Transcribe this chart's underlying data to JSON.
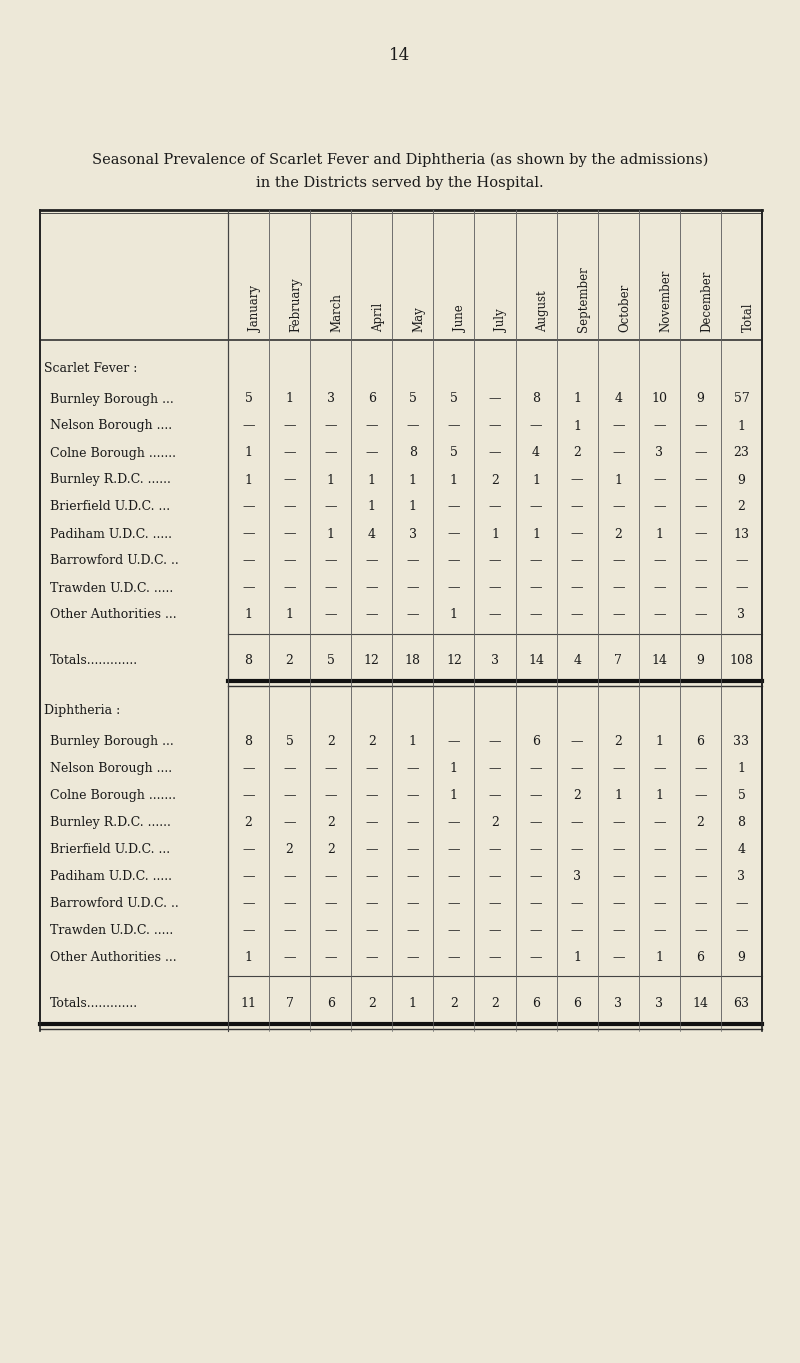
{
  "page_number": "14",
  "title_line1": "Seasonal Prevalence of Scarlet Fever and Diphtheria (as shown by the admissions)",
  "title_line2": "in the Districts served by the Hospital.",
  "bg_color": "#ede8d8",
  "col_headers": [
    "January",
    "February",
    "March",
    "April",
    "May",
    "June",
    "July",
    "August",
    "September",
    "October",
    "November",
    "December",
    "Total"
  ],
  "section1_title": "Scarlet Fever :",
  "section1_rows": [
    {
      "name": "Burnley Borough ...",
      "vals": [
        "5",
        "1",
        "3",
        "6",
        "5",
        "5",
        "—",
        "8",
        "1",
        "4",
        "10",
        "9",
        "57"
      ]
    },
    {
      "name": "Nelson Borough ....",
      "vals": [
        "—",
        "—",
        "—",
        "—",
        "—",
        "—",
        "—",
        "—",
        "1",
        "—",
        "—",
        "—",
        "1"
      ]
    },
    {
      "name": "Colne Borough .......",
      "vals": [
        "1",
        "—",
        "—",
        "—",
        "8",
        "5",
        "—",
        "4",
        "2",
        "—",
        "3",
        "—",
        "23"
      ]
    },
    {
      "name": "Burnley R.D.C. ......",
      "vals": [
        "1",
        "—",
        "1",
        "1",
        "1",
        "1",
        "2",
        "1",
        "—",
        "1",
        "—",
        "—",
        "9"
      ]
    },
    {
      "name": "Brierfield U.D.C. ...",
      "vals": [
        "—",
        "—",
        "—",
        "1",
        "1",
        "—",
        "—",
        "—",
        "—",
        "—",
        "—",
        "—",
        "2"
      ]
    },
    {
      "name": "Padiham U.D.C. .....",
      "vals": [
        "—",
        "—",
        "1",
        "4",
        "3",
        "—",
        "1",
        "1",
        "—",
        "2",
        "1",
        "—",
        "13"
      ]
    },
    {
      "name": "Barrowford U.D.C. ..",
      "vals": [
        "—",
        "—",
        "—",
        "—",
        "—",
        "—",
        "—",
        "—",
        "—",
        "—",
        "—",
        "—",
        "—"
      ]
    },
    {
      "name": "Trawden U.D.C. .....",
      "vals": [
        "—",
        "—",
        "—",
        "—",
        "—",
        "—",
        "—",
        "—",
        "—",
        "—",
        "—",
        "—",
        "—"
      ]
    },
    {
      "name": "Other Authorities ...",
      "vals": [
        "1",
        "1",
        "—",
        "—",
        "—",
        "1",
        "—",
        "—",
        "—",
        "—",
        "—",
        "—",
        "3"
      ]
    }
  ],
  "section1_totals_label": "Totals.............",
  "section1_totals": [
    "8",
    "2",
    "5",
    "12",
    "18",
    "12",
    "3",
    "14",
    "4",
    "7",
    "14",
    "9",
    "108"
  ],
  "section2_title": "Diphtheria :",
  "section2_rows": [
    {
      "name": "Burnley Borough ...",
      "vals": [
        "8",
        "5",
        "2",
        "2",
        "1",
        "—",
        "—",
        "6",
        "—",
        "2",
        "1",
        "6",
        "33"
      ]
    },
    {
      "name": "Nelson Borough ....",
      "vals": [
        "—",
        "—",
        "—",
        "—",
        "—",
        "1",
        "—",
        "—",
        "—",
        "—",
        "—",
        "—",
        "1"
      ]
    },
    {
      "name": "Colne Borough .......",
      "vals": [
        "—",
        "—",
        "—",
        "—",
        "—",
        "1",
        "—",
        "—",
        "2",
        "1",
        "1",
        "—",
        "5"
      ]
    },
    {
      "name": "Burnley R.D.C. ......",
      "vals": [
        "2",
        "—",
        "2",
        "—",
        "—",
        "—",
        "2",
        "—",
        "—",
        "—",
        "—",
        "2",
        "8"
      ]
    },
    {
      "name": "Brierfield U.D.C. ...",
      "vals": [
        "—",
        "2",
        "2",
        "—",
        "—",
        "—",
        "—",
        "—",
        "—",
        "—",
        "—",
        "—",
        "4"
      ]
    },
    {
      "name": "Padiham U.D.C. .....",
      "vals": [
        "—",
        "—",
        "—",
        "—",
        "—",
        "—",
        "—",
        "—",
        "3",
        "—",
        "—",
        "—",
        "3"
      ]
    },
    {
      "name": "Barrowford U.D.C. ..",
      "vals": [
        "—",
        "—",
        "—",
        "—",
        "—",
        "—",
        "—",
        "—",
        "—",
        "—",
        "—",
        "—",
        "—"
      ]
    },
    {
      "name": "Trawden U.D.C. .....",
      "vals": [
        "—",
        "—",
        "—",
        "—",
        "—",
        "—",
        "—",
        "—",
        "—",
        "—",
        "—",
        "—",
        "—"
      ]
    },
    {
      "name": "Other Authorities ...",
      "vals": [
        "1",
        "—",
        "—",
        "—",
        "—",
        "—",
        "—",
        "—",
        "1",
        "—",
        "1",
        "6",
        "9"
      ]
    }
  ],
  "section2_totals_label": "Totals.............",
  "section2_totals": [
    "11",
    "7",
    "6",
    "2",
    "1",
    "2",
    "2",
    "6",
    "6",
    "3",
    "3",
    "14",
    "63"
  ]
}
